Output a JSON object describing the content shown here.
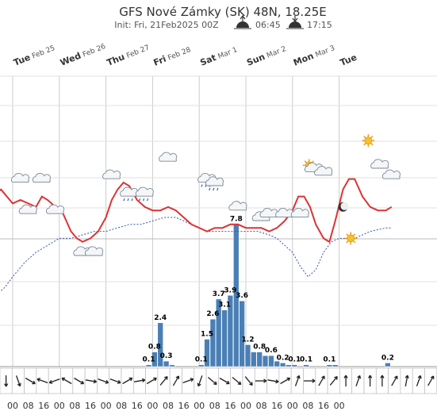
{
  "header": {
    "title": "GFS Nové Zámky (SK) 48N, 18.25E",
    "init_text": "Init: Fri, 21Feb2025 00Z",
    "sunrise": "06:45",
    "sunset": "17:15"
  },
  "colors": {
    "temperature": "#dd3333",
    "dewpoint": "#3355aa",
    "precip_bar": "#4a7fb5",
    "grid": "#cccccc"
  },
  "days": [
    {
      "main": "Tue",
      "sub": "Feb 25"
    },
    {
      "main": "Wed",
      "sub": "Feb 26"
    },
    {
      "main": "Thu",
      "sub": "Feb 27"
    },
    {
      "main": "Fri",
      "sub": "Feb 28"
    },
    {
      "main": "Sat",
      "sub": "Mar 1"
    },
    {
      "main": "Sun",
      "sub": "Mar 2"
    },
    {
      "main": "Mon",
      "sub": "Mar 3"
    },
    {
      "main": "Tue",
      "sub": ""
    }
  ],
  "hour_labels": [
    "00",
    "08",
    "16",
    "00",
    "08",
    "16",
    "00",
    "08",
    "16",
    "00",
    "08",
    "16",
    "00",
    "08",
    "16",
    "00",
    "08",
    "16",
    "00",
    "08",
    "16",
    "00"
  ],
  "chart_data": {
    "type": "bar",
    "x_unit": "hours since Tue Feb 25 00Z",
    "temperature_line": [
      [
        -12,
        6
      ],
      [
        -6,
        8
      ],
      [
        0,
        4
      ],
      [
        4,
        5
      ],
      [
        8,
        4
      ],
      [
        12,
        3
      ],
      [
        15,
        6
      ],
      [
        18,
        5
      ],
      [
        22,
        3
      ],
      [
        26,
        1
      ],
      [
        30,
        -4
      ],
      [
        33,
        -6
      ],
      [
        36,
        -7
      ],
      [
        40,
        -6
      ],
      [
        44,
        -4
      ],
      [
        48,
        0
      ],
      [
        51,
        5
      ],
      [
        54,
        8
      ],
      [
        57,
        10
      ],
      [
        60,
        9
      ],
      [
        64,
        5
      ],
      [
        68,
        3
      ],
      [
        72,
        2
      ],
      [
        76,
        2
      ],
      [
        80,
        3
      ],
      [
        84,
        2
      ],
      [
        88,
        0
      ],
      [
        92,
        -2
      ],
      [
        96,
        -3
      ],
      [
        100,
        -4
      ],
      [
        104,
        -3
      ],
      [
        108,
        -3
      ],
      [
        112,
        -2
      ],
      [
        116,
        -2
      ],
      [
        120,
        -3
      ],
      [
        124,
        -3
      ],
      [
        128,
        -3
      ],
      [
        132,
        -4
      ],
      [
        136,
        -3
      ],
      [
        140,
        -1
      ],
      [
        144,
        2
      ],
      [
        147,
        6
      ],
      [
        150,
        6
      ],
      [
        153,
        3
      ],
      [
        156,
        -2
      ],
      [
        160,
        -6
      ],
      [
        163,
        -7
      ],
      [
        166,
        -1
      ],
      [
        170,
        8
      ],
      [
        173,
        11
      ],
      [
        176,
        11
      ],
      [
        180,
        6
      ],
      [
        184,
        3
      ],
      [
        188,
        2
      ],
      [
        192,
        2
      ],
      [
        195,
        3
      ]
    ],
    "dewpoint_line": [
      [
        -12,
        -24
      ],
      [
        -4,
        -20
      ],
      [
        0,
        -17
      ],
      [
        6,
        -13
      ],
      [
        12,
        -10
      ],
      [
        18,
        -8
      ],
      [
        24,
        -6
      ],
      [
        30,
        -6
      ],
      [
        36,
        -5
      ],
      [
        42,
        -4
      ],
      [
        48,
        -4
      ],
      [
        54,
        -3
      ],
      [
        60,
        -2
      ],
      [
        66,
        -2
      ],
      [
        72,
        -1
      ],
      [
        78,
        0
      ],
      [
        84,
        0
      ],
      [
        88,
        -1
      ],
      [
        92,
        -2
      ],
      [
        96,
        -3
      ],
      [
        100,
        -4
      ],
      [
        106,
        -4
      ],
      [
        112,
        -4
      ],
      [
        120,
        -4
      ],
      [
        126,
        -4
      ],
      [
        132,
        -5
      ],
      [
        136,
        -6
      ],
      [
        140,
        -8
      ],
      [
        144,
        -10
      ],
      [
        148,
        -14
      ],
      [
        152,
        -17
      ],
      [
        156,
        -15
      ],
      [
        160,
        -10
      ],
      [
        164,
        -7
      ],
      [
        168,
        -6
      ],
      [
        176,
        -6
      ],
      [
        184,
        -4
      ],
      [
        192,
        -3
      ],
      [
        195,
        -3
      ]
    ],
    "precipitation": [
      {
        "x": 70,
        "value": 0.1,
        "label": "0.1"
      },
      {
        "x": 73,
        "value": 0.8,
        "label": "0.8"
      },
      {
        "x": 76,
        "value": 2.4,
        "label": "2.4"
      },
      {
        "x": 79,
        "value": 0.3,
        "label": "0.3"
      },
      {
        "x": 82,
        "value": 0.1,
        "label": ""
      },
      {
        "x": 97,
        "value": 0.1,
        "label": "0.1"
      },
      {
        "x": 100,
        "value": 1.5,
        "label": "1.5"
      },
      {
        "x": 103,
        "value": 2.6,
        "label": "2.6"
      },
      {
        "x": 106,
        "value": 3.7,
        "label": "3.7"
      },
      {
        "x": 109,
        "value": 3.1,
        "label": "3.1"
      },
      {
        "x": 112,
        "value": 3.9,
        "label": "3.9"
      },
      {
        "x": 115,
        "value": 7.8,
        "label": "7.8"
      },
      {
        "x": 118,
        "value": 3.6,
        "label": "3.6"
      },
      {
        "x": 121,
        "value": 1.2,
        "label": "1.2"
      },
      {
        "x": 124,
        "value": 0.8,
        "label": ""
      },
      {
        "x": 127,
        "value": 0.8,
        "label": "0.8"
      },
      {
        "x": 130,
        "value": 0.6,
        "label": ""
      },
      {
        "x": 133,
        "value": 0.6,
        "label": "0.6"
      },
      {
        "x": 136,
        "value": 0.3,
        "label": ""
      },
      {
        "x": 139,
        "value": 0.2,
        "label": "0.2"
      },
      {
        "x": 142,
        "value": 0.1,
        "label": ""
      },
      {
        "x": 145,
        "value": 0.1,
        "label": "0.1"
      },
      {
        "x": 151,
        "value": 0.1,
        "label": "0.1"
      },
      {
        "x": 163,
        "value": 0.1,
        "label": "0.1"
      },
      {
        "x": 166,
        "value": 0.1,
        "label": ""
      },
      {
        "x": 193,
        "value": 0.2,
        "label": "0.2"
      }
    ],
    "wind_directions_deg": [
      180,
      160,
      120,
      290,
      250,
      300,
      120,
      100,
      110,
      110,
      60,
      80,
      60,
      40,
      30,
      70,
      200,
      130,
      120,
      130,
      140,
      90,
      100,
      60,
      20,
      90,
      30,
      40,
      0,
      20,
      0,
      0,
      30,
      10,
      20,
      30
    ],
    "weather_icons": [
      {
        "x": -12,
        "temp": 11,
        "type": "cloud"
      },
      {
        "x": 4,
        "temp": 11,
        "type": "cloud"
      },
      {
        "x": 8,
        "temp": 2,
        "type": "cloud"
      },
      {
        "x": 15,
        "temp": 11,
        "type": "cloud"
      },
      {
        "x": 22,
        "temp": 2,
        "type": "cloud"
      },
      {
        "x": 36,
        "temp": -10,
        "type": "cloud"
      },
      {
        "x": 42,
        "temp": -10,
        "type": "cloud"
      },
      {
        "x": 51,
        "temp": 12,
        "type": "cloud"
      },
      {
        "x": 60,
        "temp": 7,
        "type": "rain"
      },
      {
        "x": 68,
        "temp": 7,
        "type": "rain"
      },
      {
        "x": 80,
        "temp": 17,
        "type": "cloud"
      },
      {
        "x": 100,
        "temp": 11,
        "type": "rain"
      },
      {
        "x": 104,
        "temp": 10,
        "type": "rain"
      },
      {
        "x": 116,
        "temp": 3,
        "type": "cloud"
      },
      {
        "x": 128,
        "temp": 0,
        "type": "cloud"
      },
      {
        "x": 132,
        "temp": 1,
        "type": "cloud"
      },
      {
        "x": 140,
        "temp": 1,
        "type": "cloud"
      },
      {
        "x": 148,
        "temp": 1,
        "type": "cloud"
      },
      {
        "x": 155,
        "temp": 14,
        "type": "sun-cloud"
      },
      {
        "x": 160,
        "temp": 13,
        "type": "cloud"
      },
      {
        "x": 170,
        "temp": 3,
        "type": "moon"
      },
      {
        "x": 174,
        "temp": -6,
        "type": "sun"
      },
      {
        "x": 183,
        "temp": 22,
        "type": "sun"
      },
      {
        "x": 189,
        "temp": 15,
        "type": "cloud"
      },
      {
        "x": 195,
        "temp": 12,
        "type": "cloud"
      }
    ]
  }
}
